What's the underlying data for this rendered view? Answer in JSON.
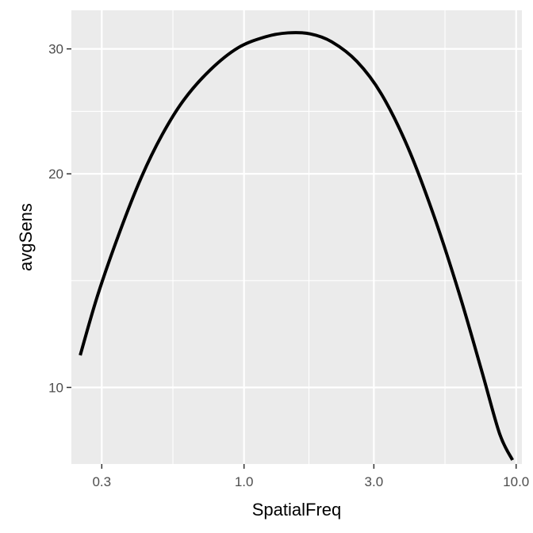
{
  "chart_data": {
    "type": "line",
    "xlabel": "SpatialFreq",
    "ylabel": "avgSens",
    "x_scale": "log10",
    "y_scale": "log10",
    "xlim": [
      0.232,
      10.5
    ],
    "ylim": [
      7.8,
      34
    ],
    "x_ticks": [
      {
        "value": 0.3,
        "label": "0.3"
      },
      {
        "value": 1.0,
        "label": "1.0"
      },
      {
        "value": 3.0,
        "label": "3.0"
      },
      {
        "value": 10.0,
        "label": "10.0"
      }
    ],
    "x_minor_ticks": [
      0.5477,
      1.7321,
      5.4772
    ],
    "y_ticks": [
      {
        "value": 10,
        "label": "10"
      },
      {
        "value": 20,
        "label": "20"
      },
      {
        "value": 30,
        "label": "30"
      }
    ],
    "y_minor_ticks": [
      14.1421,
      24.4949
    ],
    "grid": true,
    "colors": {
      "panel_background": "#ebebeb",
      "grid_line": "#ffffff",
      "series_line": "#000000",
      "tick_label": "#4d4d4d",
      "axis_title": "#000000"
    },
    "series": [
      {
        "values": [
          {
            "x": 0.25,
            "y": 11.1
          },
          {
            "x": 0.29,
            "y": 13.5
          },
          {
            "x": 0.35,
            "y": 16.6
          },
          {
            "x": 0.42,
            "y": 19.8
          },
          {
            "x": 0.5,
            "y": 22.7
          },
          {
            "x": 0.6,
            "y": 25.4
          },
          {
            "x": 0.75,
            "y": 28.0
          },
          {
            "x": 0.95,
            "y": 30.1
          },
          {
            "x": 1.2,
            "y": 31.2
          },
          {
            "x": 1.45,
            "y": 31.6
          },
          {
            "x": 1.75,
            "y": 31.5
          },
          {
            "x": 2.1,
            "y": 30.7
          },
          {
            "x": 2.6,
            "y": 28.8
          },
          {
            "x": 3.2,
            "y": 25.9
          },
          {
            "x": 4.0,
            "y": 21.8
          },
          {
            "x": 5.0,
            "y": 17.4
          },
          {
            "x": 6.2,
            "y": 13.5
          },
          {
            "x": 7.5,
            "y": 10.5
          },
          {
            "x": 8.7,
            "y": 8.6
          },
          {
            "x": 9.7,
            "y": 7.9
          }
        ]
      }
    ]
  }
}
